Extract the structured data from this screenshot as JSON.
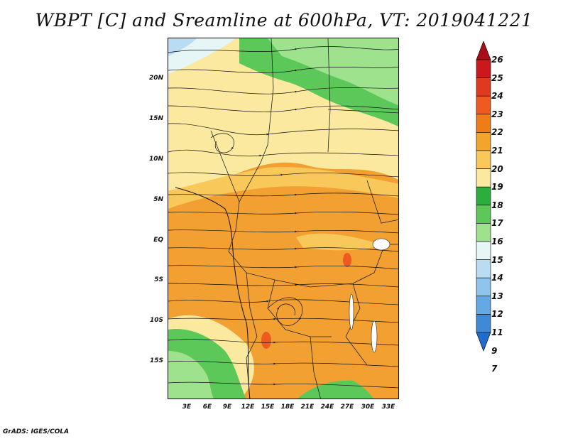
{
  "title": "WBPT [C] and Sreamline at 600hPa, VT: 2019041221",
  "footer": "GrADS: IGES/COLA",
  "map": {
    "lat_labels": [
      "20N",
      "15N",
      "10N",
      "5N",
      "EQ",
      "5S",
      "10S",
      "15S"
    ],
    "lon_labels": [
      "3E",
      "6E",
      "9E",
      "12E",
      "15E",
      "18E",
      "21E",
      "24E",
      "27E",
      "30E",
      "33E"
    ]
  },
  "colorbar": {
    "labels": [
      "26",
      "25",
      "24",
      "23",
      "22",
      "21",
      "20",
      "19",
      "18",
      "17",
      "16",
      "15",
      "14",
      "13",
      "12",
      "11",
      "9",
      "7"
    ],
    "colors": [
      "#a50f15",
      "#cb181d",
      "#e03a1e",
      "#ee5a20",
      "#f07c18",
      "#f4a32c",
      "#f8c85a",
      "#fbe9a0",
      "#2cae3c",
      "#5cc85a",
      "#9ee28e",
      "#e6f5f6",
      "#b9dcf2",
      "#8fc4ec",
      "#64a8e4",
      "#3f8ad8",
      "#1f6ccc"
    ]
  }
}
